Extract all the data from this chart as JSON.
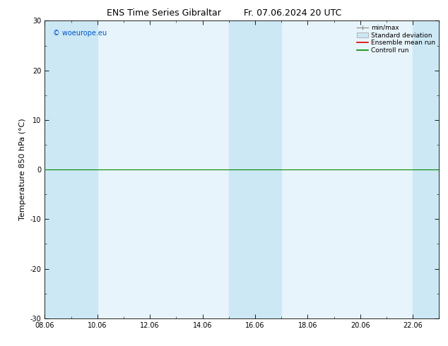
{
  "title": "ENS Time Series Gibraltar",
  "title_date": "Fr. 07.06.2024 20 UTC",
  "ylabel": "Temperature 850 hPa (°C)",
  "ylim": [
    -30,
    30
  ],
  "yticks": [
    -30,
    -20,
    -10,
    0,
    10,
    20,
    30
  ],
  "xtick_labels": [
    "08.06",
    "10.06",
    "12.06",
    "14.06",
    "16.06",
    "18.06",
    "20.06",
    "22.06"
  ],
  "background_color": "#ffffff",
  "plot_bg_color": "#e8f4fb",
  "band_color": "#cce8f4",
  "watermark": "© woeurope.eu",
  "legend_labels": [
    "min/max",
    "Standard deviation",
    "Ensemble mean run",
    "Controll run"
  ],
  "hline_y": 0,
  "hline_color": "#008800",
  "title_fontsize": 9,
  "tick_fontsize": 7,
  "ylabel_fontsize": 8,
  "watermark_color": "#0055cc"
}
